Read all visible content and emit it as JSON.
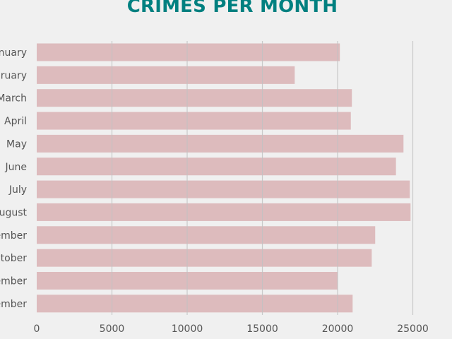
{
  "chart_data": {
    "type": "bar",
    "orientation": "horizontal",
    "title": "CRIMES PER MONTH",
    "xlabel": "",
    "ylabel": "",
    "categories": [
      "January",
      "February",
      "March",
      "April",
      "May",
      "June",
      "July",
      "August",
      "September",
      "October",
      "November",
      "December"
    ],
    "values": [
      20150,
      17150,
      20950,
      20880,
      24380,
      23880,
      24800,
      24850,
      22500,
      22270,
      20000,
      21000
    ],
    "xlim": [
      0,
      26000
    ],
    "xticks": [
      0,
      5000,
      10000,
      15000,
      20000,
      25000
    ],
    "grid": true,
    "bar_color": "#ddbbbd",
    "grid_color": "#c2c2c2",
    "title_color": "#008080",
    "background": "#f0f0f0"
  }
}
